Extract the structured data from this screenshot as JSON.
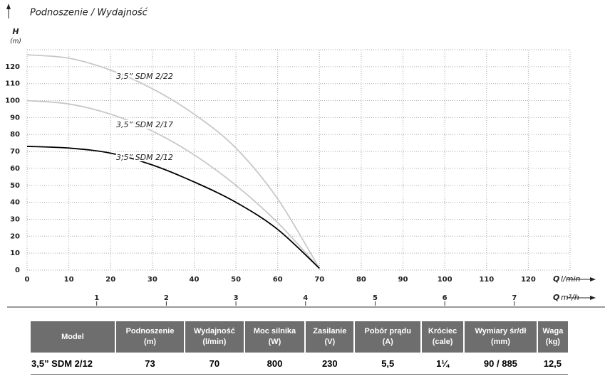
{
  "chart_data": {
    "type": "line",
    "title": "Podnoszenie / Wydajność",
    "y_label": "H",
    "y_unit": "(m)",
    "x_label": "Q",
    "x_unit": "l/min",
    "x2_label": "Q",
    "x2_unit": "m³/h",
    "x": [
      0,
      10,
      20,
      30,
      40,
      50,
      60,
      70
    ],
    "series": [
      {
        "name": "3,5” SDM 2/22",
        "color": "#c8c8c8",
        "values": [
          127,
          125,
          118,
          107,
          92,
          72,
          42,
          1
        ]
      },
      {
        "name": "3,5” SDM 2/17",
        "color": "#c8c8c8",
        "values": [
          100,
          98,
          92,
          82,
          68,
          50,
          28,
          1
        ]
      },
      {
        "name": "3,5” SDM 2/12",
        "color": "#000000",
        "values": [
          73,
          72,
          69,
          62,
          52,
          40,
          24,
          1
        ]
      }
    ],
    "xlim": [
      0,
      130
    ],
    "xticks": [
      0,
      10,
      20,
      30,
      40,
      50,
      60,
      70,
      80,
      90,
      100,
      110,
      120
    ],
    "ylim": [
      0,
      130
    ],
    "yticks": [
      0,
      10,
      20,
      30,
      40,
      50,
      60,
      70,
      80,
      90,
      100,
      110,
      120
    ],
    "x2lim": [
      0,
      7.8
    ],
    "x2ticks": [
      1,
      2,
      3,
      4,
      5,
      6,
      7
    ],
    "grid": true
  },
  "table": {
    "columns": [
      {
        "name": "Model"
      },
      {
        "name": "Podnoszenie",
        "unit": "(m)"
      },
      {
        "name": "Wydajność",
        "unit": "(l/min)"
      },
      {
        "name": "Moc silnika",
        "unit": "(W)"
      },
      {
        "name": "Zasilanie",
        "unit": "(V)"
      },
      {
        "name": "Pobór prądu",
        "unit": "(A)"
      },
      {
        "name": "Króciec",
        "unit": "(cale)"
      },
      {
        "name": "Wymiary śr/dł",
        "unit": "(mm)"
      },
      {
        "name": "Waga",
        "unit": "(kg)"
      }
    ],
    "rows": [
      [
        "3,5” SDM  2/12",
        "73",
        "70",
        "800",
        "230",
        "5,5",
        "1¼",
        "90 / 885",
        "12,5"
      ]
    ]
  }
}
